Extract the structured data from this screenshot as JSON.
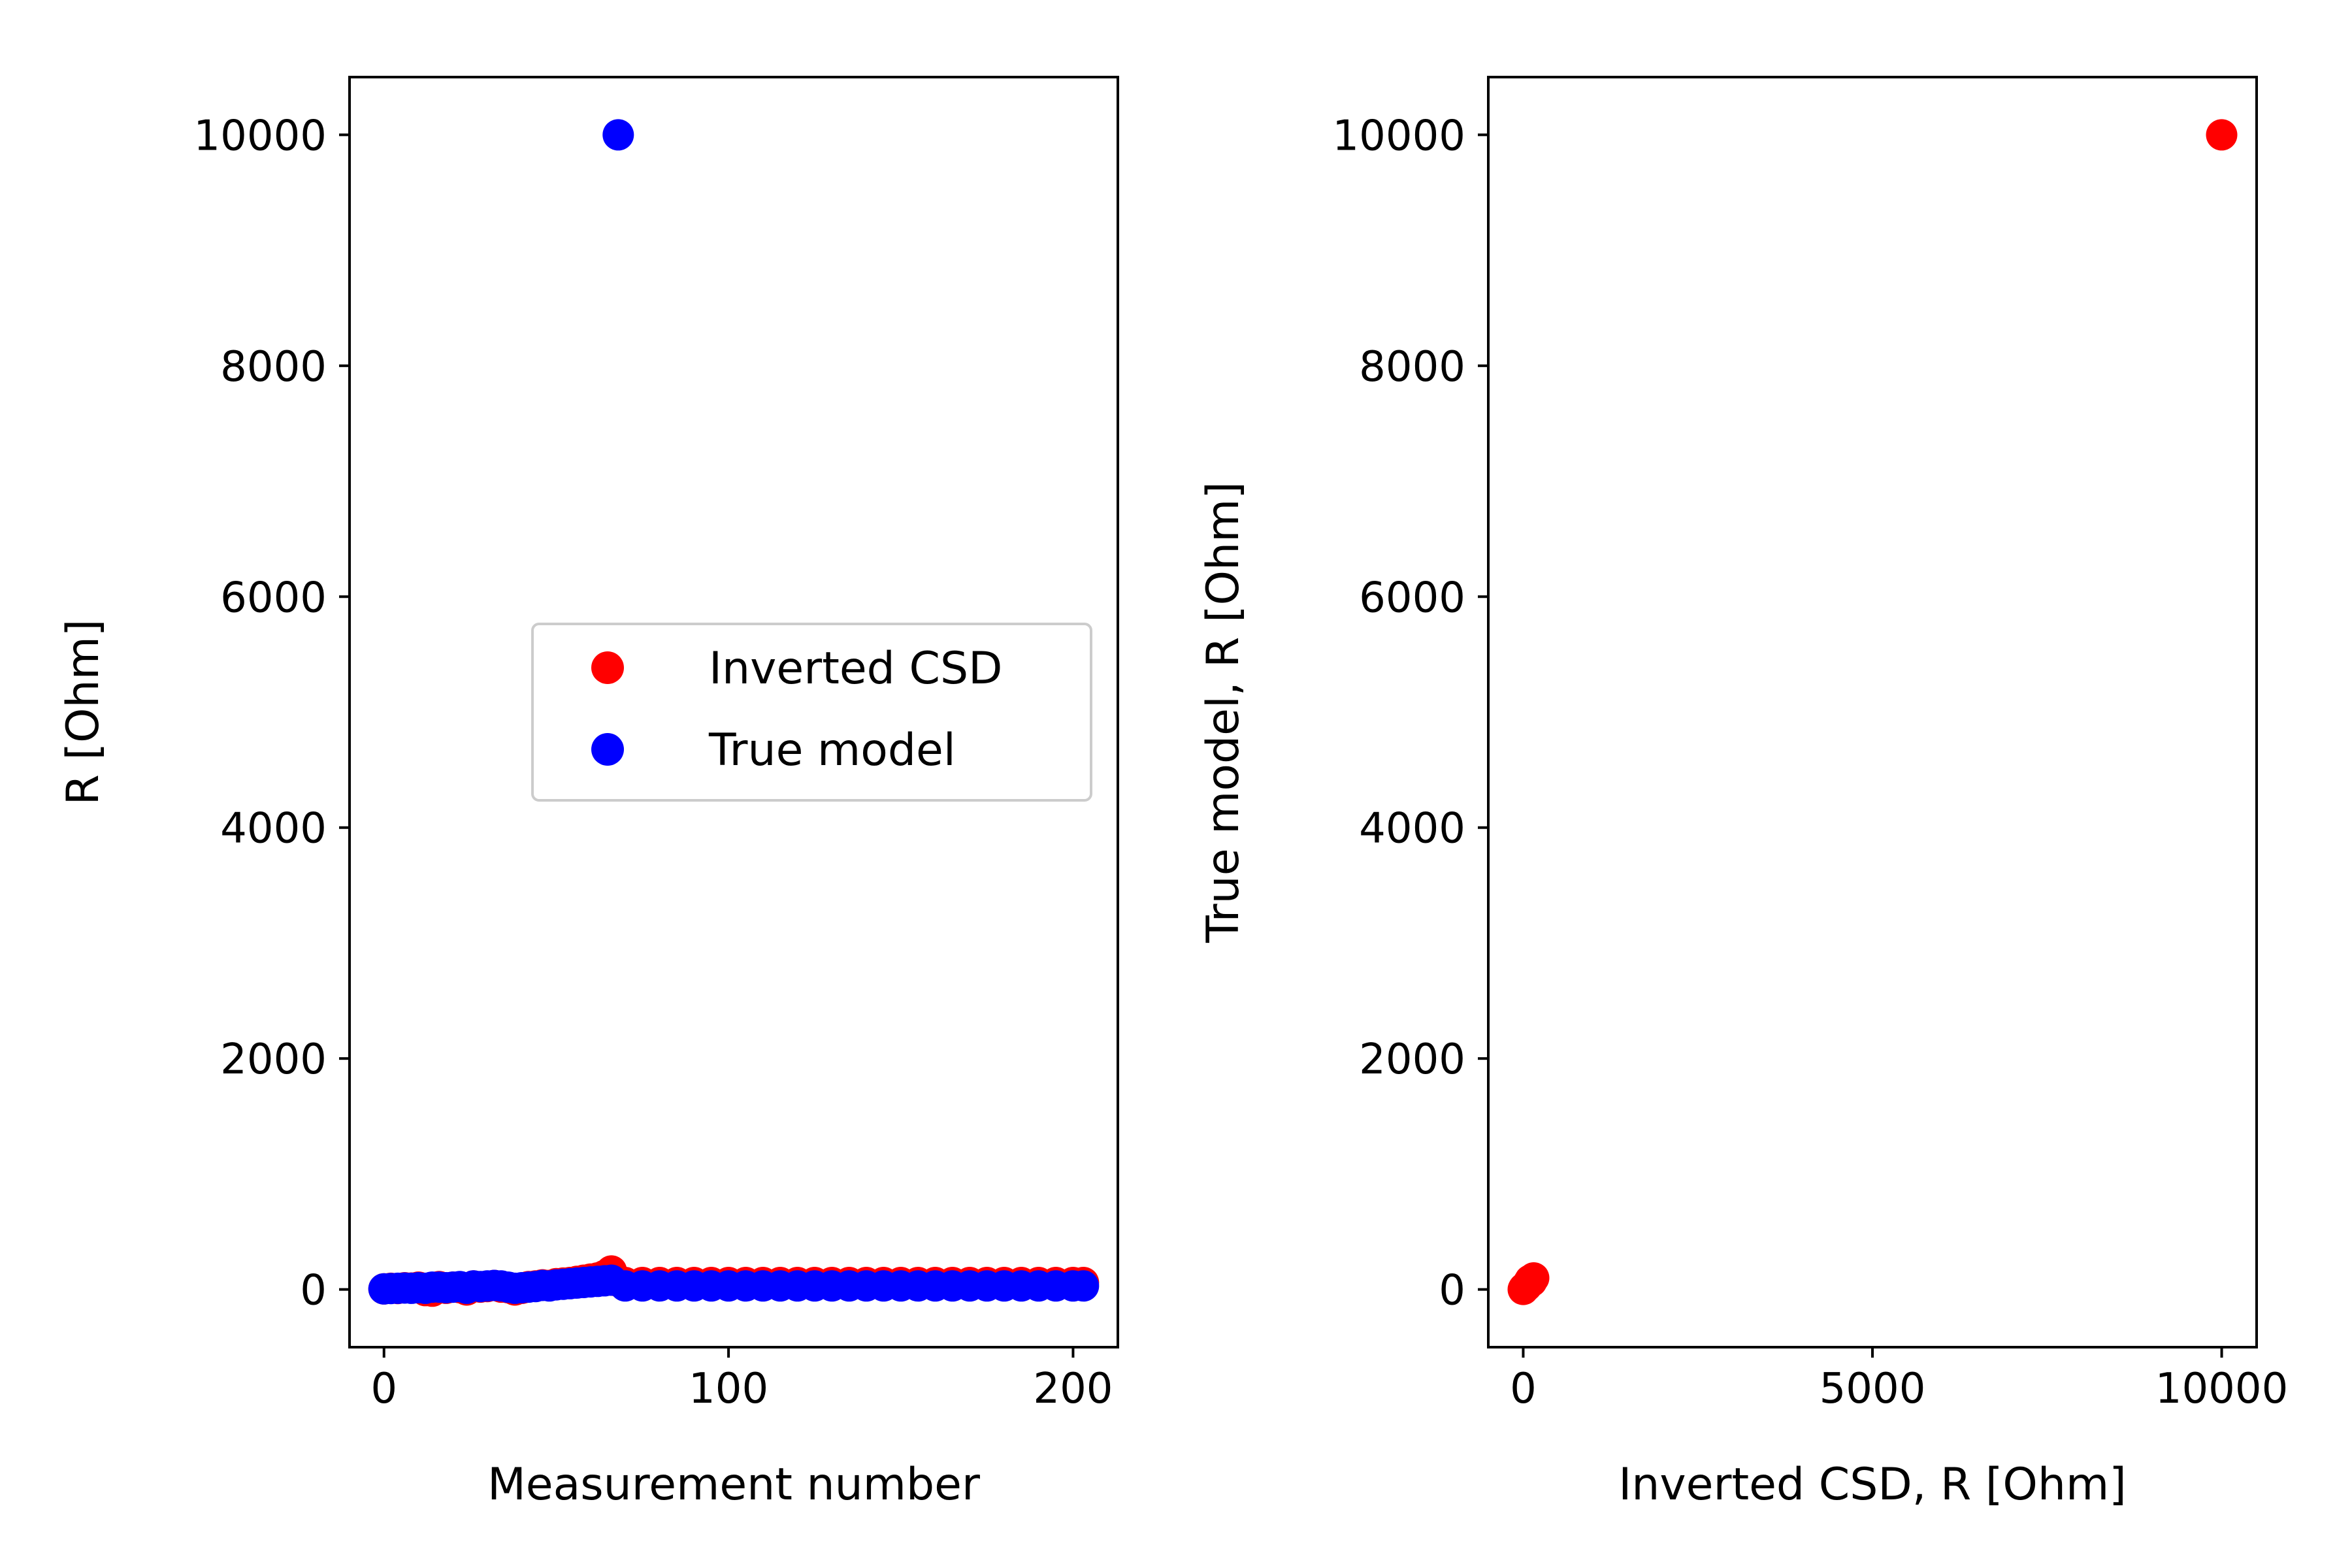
{
  "colors": {
    "inverted": "#ff0000",
    "true_model": "#0000ff",
    "axes": "#000000",
    "legend_border": "#cccccc",
    "background": "#ffffff"
  },
  "chart_data": [
    {
      "type": "scatter",
      "title": "",
      "xlabel": "Measurement number",
      "ylabel": "R [Ohm]",
      "xlim": [
        -10,
        213
      ],
      "ylim": [
        -500,
        10500
      ],
      "xticks": [
        0,
        100,
        200
      ],
      "yticks": [
        0,
        2000,
        4000,
        6000,
        8000,
        10000
      ],
      "grid": false,
      "legend": {
        "placement": "center-right",
        "entries": [
          "Inverted CSD",
          "True model"
        ]
      },
      "series": [
        {
          "name": "Inverted CSD",
          "color": "#ff0000",
          "x": [
            0,
            2,
            4,
            6,
            8,
            10,
            12,
            14,
            16,
            18,
            20,
            22,
            24,
            26,
            28,
            30,
            32,
            34,
            36,
            38,
            40,
            42,
            44,
            46,
            48,
            50,
            52,
            54,
            56,
            58,
            60,
            62,
            64,
            66,
            68,
            70,
            75,
            80,
            85,
            90,
            95,
            100,
            105,
            110,
            115,
            120,
            125,
            130,
            135,
            140,
            145,
            150,
            155,
            160,
            165,
            170,
            175,
            180,
            185,
            190,
            195,
            200,
            203
          ],
          "y": [
            5,
            10,
            8,
            15,
            12,
            20,
            -10,
            -15,
            25,
            10,
            20,
            15,
            -5,
            30,
            20,
            25,
            35,
            20,
            15,
            -5,
            10,
            25,
            30,
            40,
            35,
            50,
            55,
            60,
            70,
            80,
            90,
            100,
            120,
            160,
            70,
            60,
            60,
            60,
            60,
            60,
            60,
            60,
            60,
            60,
            60,
            60,
            60,
            60,
            60,
            60,
            60,
            60,
            60,
            60,
            60,
            60,
            60,
            60,
            60,
            60,
            60,
            60,
            60
          ]
        },
        {
          "name": "True model",
          "color": "#0000ff",
          "x": [
            0,
            2,
            4,
            6,
            8,
            10,
            12,
            14,
            16,
            18,
            20,
            22,
            24,
            26,
            28,
            30,
            32,
            34,
            36,
            38,
            40,
            42,
            44,
            46,
            48,
            50,
            52,
            54,
            56,
            58,
            60,
            62,
            64,
            66,
            68,
            70,
            75,
            80,
            85,
            90,
            95,
            100,
            105,
            110,
            115,
            120,
            125,
            130,
            135,
            140,
            145,
            150,
            155,
            160,
            165,
            170,
            175,
            180,
            185,
            190,
            195,
            200,
            203
          ],
          "y": [
            5,
            8,
            10,
            12,
            10,
            15,
            10,
            20,
            20,
            15,
            20,
            25,
            10,
            30,
            25,
            30,
            35,
            30,
            20,
            10,
            15,
            20,
            25,
            35,
            30,
            40,
            45,
            50,
            55,
            60,
            65,
            70,
            75,
            80,
            10000,
            30,
            30,
            30,
            30,
            30,
            30,
            30,
            30,
            30,
            30,
            30,
            30,
            30,
            30,
            30,
            30,
            30,
            30,
            30,
            30,
            30,
            30,
            30,
            30,
            30,
            30,
            30,
            30
          ]
        }
      ]
    },
    {
      "type": "scatter",
      "title": "",
      "xlabel": "Inverted CSD, R [Ohm]",
      "ylabel": "True model, R [Ohm]",
      "xlim": [
        -500,
        10500
      ],
      "ylim": [
        -500,
        10500
      ],
      "xticks": [
        0,
        5000,
        10000
      ],
      "yticks": [
        0,
        2000,
        4000,
        6000,
        8000,
        10000
      ],
      "grid": false,
      "series": [
        {
          "name": "",
          "color": "#ff0000",
          "x": [
            0,
            10,
            20,
            30,
            40,
            50,
            60,
            80,
            100,
            120,
            150,
            10000
          ],
          "y": [
            0,
            10,
            15,
            20,
            25,
            30,
            40,
            60,
            80,
            70,
            100,
            10000
          ]
        }
      ]
    }
  ]
}
